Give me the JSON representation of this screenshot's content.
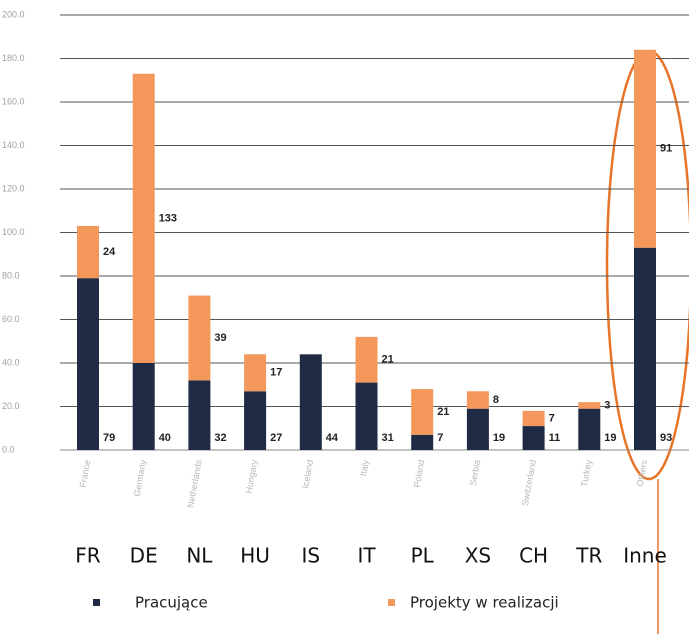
{
  "chart_data": {
    "type": "stacked_bar",
    "categories": [
      "FR",
      "DE",
      "NL",
      "HU",
      "IS",
      "IT",
      "PL",
      "XS",
      "CH",
      "TR",
      "Inne"
    ],
    "axis_labels_original": [
      "France",
      "Germany",
      "Netherlands",
      "Hungary",
      "Iceland",
      "Italy",
      "Poland",
      "Serbia",
      "Switzerland",
      "Turkey",
      "Others"
    ],
    "series": [
      {
        "name": "Pracujące",
        "color": "#1f2a44",
        "values": [
          79,
          40,
          32,
          27,
          44,
          31,
          7,
          19,
          11,
          19,
          93
        ]
      },
      {
        "name": "Projekty w realizacji",
        "color": "#f4975a",
        "values": [
          24,
          133,
          39,
          17,
          null,
          21,
          21,
          8,
          7,
          3,
          91
        ]
      }
    ],
    "ylim": [
      0,
      200
    ],
    "yticks": [
      {
        "value": 0,
        "label": "0.0"
      },
      {
        "value": 20,
        "label": "20.0"
      },
      {
        "value": 40,
        "label": "40.0"
      },
      {
        "value": 60,
        "label": "60.0"
      },
      {
        "value": 80,
        "label": "80.0"
      },
      {
        "value": 100,
        "label": "100.0"
      },
      {
        "value": 120,
        "label": "120.0"
      },
      {
        "value": 140,
        "label": "140.0"
      },
      {
        "value": 160,
        "label": "160.0"
      },
      {
        "value": 180,
        "label": "180.0"
      },
      {
        "value": 200,
        "label": "200.0"
      }
    ],
    "grid": true
  }
}
